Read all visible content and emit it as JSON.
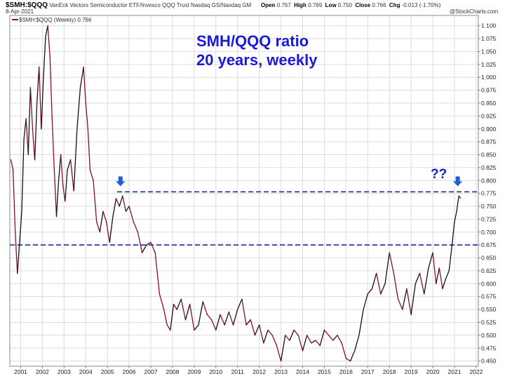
{
  "header": {
    "symbol": "$SMH:$QQQ",
    "description": "VanEck Vectors Semiconductor ETF/Invesco QQQ Trust Nasdaq GS/Nasdaq GM",
    "date": "8-Apr-2021",
    "open_label": "Open",
    "open_value": "0.767",
    "high_label": "High",
    "high_value": "0.769",
    "low_label": "Low",
    "low_value": "0.750",
    "close_label": "Close",
    "close_value": "0.766",
    "chg_label": "Chg",
    "chg_value": "-0.013 (-1.70%)",
    "watermark": "@StockCharts.com",
    "legend": "$SMH:$QQQ (Weekly) 0.766"
  },
  "annotation": {
    "line1": "SMH/QQQ ratio",
    "line2": "20 years, weekly",
    "question": "??"
  },
  "colors": {
    "series": "#8b0c2e",
    "up_segment": "#111111",
    "title": "#1b1bd6",
    "dashed": "#1a2f8a",
    "arrow": "#1f5fd6"
  },
  "chart_data": {
    "type": "line",
    "title": "",
    "ylim": [
      0.44,
      1.12
    ],
    "xlim": [
      2000.5,
      2022.1
    ],
    "y_ticks": [
      "1.100",
      "1.075",
      "1.050",
      "1.025",
      "1.000",
      "0.975",
      "0.950",
      "0.925",
      "0.900",
      "0.875",
      "0.850",
      "0.825",
      "0.800",
      "0.775",
      "0.750",
      "0.725",
      "0.700",
      "0.675",
      "0.650",
      "0.625",
      "0.600",
      "0.575",
      "0.550",
      "0.525",
      "0.500",
      "0.475",
      "0.450"
    ],
    "x_ticks": [
      "2001",
      "2002",
      "2003",
      "2004",
      "2005",
      "2006",
      "2007",
      "2008",
      "2009",
      "2010",
      "2011",
      "2012",
      "2013",
      "2014",
      "2015",
      "2016",
      "2017",
      "2018",
      "2019",
      "2020",
      "2021",
      "2022"
    ],
    "hlines": [
      0.778,
      0.675
    ],
    "series": [
      {
        "x": [
          2000.55,
          2000.65,
          2000.75,
          2000.85,
          2000.95,
          2001.05,
          2001.15,
          2001.25,
          2001.35,
          2001.45,
          2001.55,
          2001.65,
          2001.75,
          2001.85,
          2001.95,
          2002.05,
          2002.15,
          2002.25,
          2002.35,
          2002.45,
          2002.55,
          2002.65,
          2002.75,
          2002.85,
          2002.95,
          2003.05,
          2003.15,
          2003.3,
          2003.45,
          2003.6,
          2003.75,
          2003.9,
          2004.0,
          2004.1,
          2004.2,
          2004.35,
          2004.5,
          2004.65,
          2004.8,
          2004.95,
          2005.1,
          2005.25,
          2005.4,
          2005.55,
          2005.7,
          2005.85,
          2006.0,
          2006.2,
          2006.4,
          2006.6,
          2006.8,
          2007.0,
          2007.2,
          2007.4,
          2007.6,
          2007.75,
          2007.9,
          2008.05,
          2008.2,
          2008.4,
          2008.6,
          2008.8,
          2009.0,
          2009.2,
          2009.4,
          2009.6,
          2009.8,
          2010.0,
          2010.2,
          2010.4,
          2010.6,
          2010.8,
          2011.0,
          2011.2,
          2011.4,
          2011.6,
          2011.8,
          2012.0,
          2012.2,
          2012.4,
          2012.6,
          2012.8,
          2013.0,
          2013.2,
          2013.4,
          2013.6,
          2013.8,
          2014.0,
          2014.2,
          2014.4,
          2014.6,
          2014.8,
          2015.0,
          2015.2,
          2015.4,
          2015.6,
          2015.8,
          2016.0,
          2016.2,
          2016.4,
          2016.6,
          2016.8,
          2017.0,
          2017.2,
          2017.4,
          2017.6,
          2017.8,
          2018.0,
          2018.2,
          2018.4,
          2018.6,
          2018.8,
          2019.0,
          2019.2,
          2019.4,
          2019.6,
          2019.8,
          2020.0,
          2020.15,
          2020.3,
          2020.45,
          2020.6,
          2020.75,
          2020.9,
          2021.0,
          2021.1,
          2021.2,
          2021.27
        ],
        "y": [
          0.84,
          0.82,
          0.7,
          0.62,
          0.68,
          0.74,
          0.88,
          0.92,
          0.85,
          0.98,
          0.9,
          0.84,
          0.95,
          1.02,
          0.9,
          1.0,
          1.08,
          1.1,
          1.04,
          0.92,
          0.82,
          0.73,
          0.8,
          0.85,
          0.79,
          0.76,
          0.82,
          0.84,
          0.78,
          0.9,
          0.98,
          1.02,
          0.95,
          0.9,
          0.82,
          0.8,
          0.72,
          0.7,
          0.74,
          0.72,
          0.68,
          0.73,
          0.765,
          0.75,
          0.77,
          0.74,
          0.75,
          0.72,
          0.7,
          0.66,
          0.675,
          0.68,
          0.66,
          0.58,
          0.55,
          0.52,
          0.51,
          0.56,
          0.55,
          0.57,
          0.53,
          0.56,
          0.51,
          0.52,
          0.565,
          0.54,
          0.53,
          0.51,
          0.54,
          0.52,
          0.545,
          0.52,
          0.55,
          0.57,
          0.52,
          0.53,
          0.5,
          0.52,
          0.485,
          0.51,
          0.5,
          0.48,
          0.45,
          0.5,
          0.49,
          0.51,
          0.5,
          0.47,
          0.5,
          0.485,
          0.49,
          0.48,
          0.51,
          0.5,
          0.49,
          0.5,
          0.485,
          0.455,
          0.45,
          0.47,
          0.5,
          0.55,
          0.58,
          0.59,
          0.62,
          0.58,
          0.6,
          0.66,
          0.62,
          0.57,
          0.55,
          0.59,
          0.54,
          0.6,
          0.62,
          0.58,
          0.63,
          0.66,
          0.6,
          0.63,
          0.59,
          0.61,
          0.625,
          0.68,
          0.72,
          0.74,
          0.77,
          0.766
        ]
      }
    ]
  }
}
